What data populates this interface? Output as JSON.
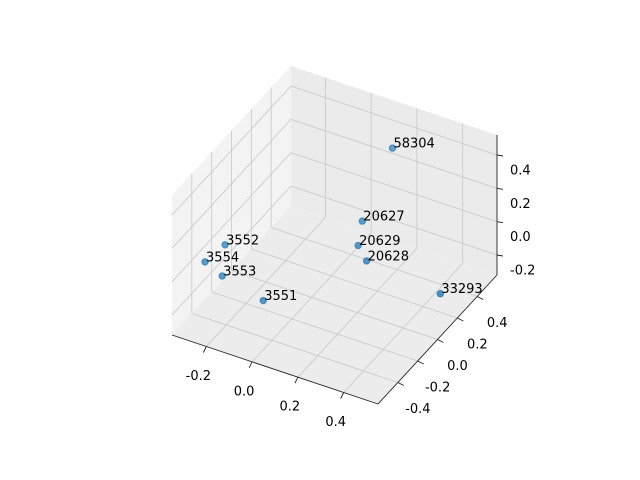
{
  "chart_data": {
    "type": "scatter3d",
    "labels": [
      "3551",
      "3552",
      "3553",
      "3554",
      "58304",
      "20627",
      "20629",
      "20628",
      "33293"
    ],
    "x": [
      -0.09,
      -0.235,
      -0.2,
      -0.275,
      0.18,
      0.15,
      0.16,
      0.21,
      0.48
    ],
    "y": [
      -0.28,
      -0.33,
      -0.44,
      -0.44,
      0.4,
      0.165,
      0.1,
      0.07,
      0.19
    ],
    "z": [
      -0.2,
      0.1,
      0,
      0.05,
      0.4,
      0.1,
      0,
      -0.05,
      -0.2
    ],
    "color": "#1f77b4",
    "xlim": [
      -0.35,
      0.55
    ],
    "ylim": [
      -0.6,
      0.6
    ],
    "zlim": [
      -0.32,
      0.52
    ],
    "xticks": [
      -0.2,
      {
        "value": 0,
        "label": "0.0"
      },
      0.2,
      0.4
    ],
    "yticks": [
      -0.4,
      -0.2,
      {
        "value": 0,
        "label": "0.0"
      },
      0.2,
      0.4
    ],
    "zticks": [
      -0.2,
      {
        "value": 0,
        "label": "0.0"
      },
      0.2,
      0.4
    ],
    "grid": true
  }
}
